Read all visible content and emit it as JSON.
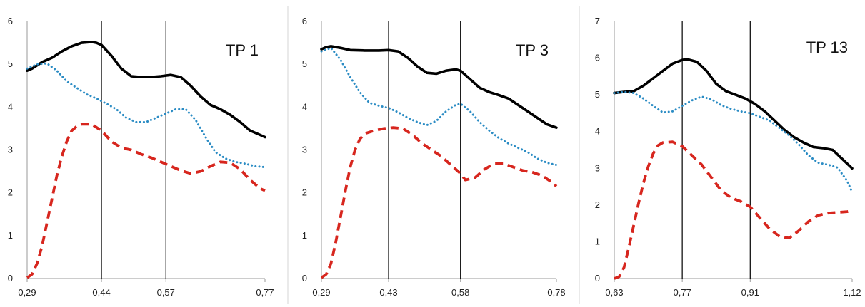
{
  "colors": {
    "solid": "#000000",
    "dotted": "#2b8cc4",
    "dashed": "#d7261e",
    "frame": "#9a9a9a",
    "vline": "#000000"
  },
  "chart_data": [
    {
      "type": "line",
      "title": "TP 1",
      "ylim": [
        0,
        6
      ],
      "yticks": [
        "0",
        "1",
        "2",
        "3",
        "4",
        "5",
        "6"
      ],
      "xlim": [
        0.29,
        0.77
      ],
      "xtick_values": [
        0.29,
        0.44,
        0.57,
        0.77
      ],
      "xtick_labels": [
        "0,29",
        "0,44",
        "0,57",
        "0,77"
      ],
      "vlines": [
        0.44,
        0.57
      ],
      "legend": "none",
      "series": [
        {
          "style": "solid",
          "points": [
            [
              0.29,
              4.85
            ],
            [
              0.3,
              4.9
            ],
            [
              0.32,
              5.05
            ],
            [
              0.34,
              5.15
            ],
            [
              0.36,
              5.3
            ],
            [
              0.38,
              5.42
            ],
            [
              0.4,
              5.5
            ],
            [
              0.42,
              5.52
            ],
            [
              0.43,
              5.5
            ],
            [
              0.44,
              5.45
            ],
            [
              0.46,
              5.2
            ],
            [
              0.48,
              4.9
            ],
            [
              0.5,
              4.72
            ],
            [
              0.52,
              4.7
            ],
            [
              0.54,
              4.7
            ],
            [
              0.56,
              4.72
            ],
            [
              0.58,
              4.75
            ],
            [
              0.6,
              4.7
            ],
            [
              0.62,
              4.5
            ],
            [
              0.64,
              4.25
            ],
            [
              0.66,
              4.05
            ],
            [
              0.68,
              3.95
            ],
            [
              0.7,
              3.82
            ],
            [
              0.72,
              3.65
            ],
            [
              0.74,
              3.45
            ],
            [
              0.76,
              3.35
            ],
            [
              0.77,
              3.3
            ]
          ]
        },
        {
          "style": "dotted",
          "points": [
            [
              0.29,
              4.9
            ],
            [
              0.31,
              5.0
            ],
            [
              0.33,
              5.02
            ],
            [
              0.35,
              4.85
            ],
            [
              0.37,
              4.6
            ],
            [
              0.39,
              4.45
            ],
            [
              0.41,
              4.3
            ],
            [
              0.43,
              4.2
            ],
            [
              0.45,
              4.08
            ],
            [
              0.47,
              3.95
            ],
            [
              0.49,
              3.75
            ],
            [
              0.51,
              3.65
            ],
            [
              0.53,
              3.65
            ],
            [
              0.55,
              3.75
            ],
            [
              0.57,
              3.85
            ],
            [
              0.59,
              3.95
            ],
            [
              0.61,
              3.95
            ],
            [
              0.63,
              3.7
            ],
            [
              0.65,
              3.3
            ],
            [
              0.67,
              2.95
            ],
            [
              0.69,
              2.8
            ],
            [
              0.71,
              2.72
            ],
            [
              0.73,
              2.68
            ],
            [
              0.75,
              2.62
            ],
            [
              0.77,
              2.6
            ]
          ]
        },
        {
          "style": "dashed",
          "points": [
            [
              0.29,
              0.02
            ],
            [
              0.3,
              0.1
            ],
            [
              0.31,
              0.35
            ],
            [
              0.32,
              0.75
            ],
            [
              0.33,
              1.3
            ],
            [
              0.34,
              1.85
            ],
            [
              0.35,
              2.4
            ],
            [
              0.36,
              2.85
            ],
            [
              0.37,
              3.2
            ],
            [
              0.38,
              3.45
            ],
            [
              0.39,
              3.55
            ],
            [
              0.4,
              3.6
            ],
            [
              0.42,
              3.6
            ],
            [
              0.44,
              3.45
            ],
            [
              0.46,
              3.2
            ],
            [
              0.48,
              3.05
            ],
            [
              0.5,
              3.0
            ],
            [
              0.52,
              2.9
            ],
            [
              0.54,
              2.82
            ],
            [
              0.56,
              2.72
            ],
            [
              0.58,
              2.62
            ],
            [
              0.6,
              2.52
            ],
            [
              0.62,
              2.45
            ],
            [
              0.64,
              2.5
            ],
            [
              0.66,
              2.62
            ],
            [
              0.68,
              2.72
            ],
            [
              0.7,
              2.7
            ],
            [
              0.72,
              2.55
            ],
            [
              0.74,
              2.3
            ],
            [
              0.76,
              2.1
            ],
            [
              0.77,
              2.05
            ]
          ]
        }
      ]
    },
    {
      "type": "line",
      "title": "TP 3",
      "ylim": [
        0,
        6
      ],
      "yticks": [
        "0",
        "1",
        "2",
        "3",
        "4",
        "5",
        "6"
      ],
      "xlim": [
        0.29,
        0.78
      ],
      "xtick_values": [
        0.29,
        0.43,
        0.58,
        0.78
      ],
      "xtick_labels": [
        "0,29",
        "0,43",
        "0,58",
        "0,78"
      ],
      "vlines": [
        0.43,
        0.58
      ],
      "legend": "none",
      "series": [
        {
          "style": "solid",
          "points": [
            [
              0.29,
              5.35
            ],
            [
              0.3,
              5.4
            ],
            [
              0.31,
              5.42
            ],
            [
              0.33,
              5.38
            ],
            [
              0.35,
              5.33
            ],
            [
              0.38,
              5.32
            ],
            [
              0.41,
              5.32
            ],
            [
              0.43,
              5.33
            ],
            [
              0.45,
              5.3
            ],
            [
              0.47,
              5.15
            ],
            [
              0.49,
              4.95
            ],
            [
              0.51,
              4.8
            ],
            [
              0.53,
              4.78
            ],
            [
              0.55,
              4.85
            ],
            [
              0.57,
              4.88
            ],
            [
              0.58,
              4.85
            ],
            [
              0.6,
              4.65
            ],
            [
              0.62,
              4.45
            ],
            [
              0.64,
              4.35
            ],
            [
              0.66,
              4.28
            ],
            [
              0.68,
              4.2
            ],
            [
              0.7,
              4.05
            ],
            [
              0.72,
              3.9
            ],
            [
              0.74,
              3.75
            ],
            [
              0.76,
              3.6
            ],
            [
              0.78,
              3.52
            ]
          ]
        },
        {
          "style": "dotted",
          "points": [
            [
              0.29,
              5.3
            ],
            [
              0.31,
              5.38
            ],
            [
              0.33,
              5.1
            ],
            [
              0.35,
              4.7
            ],
            [
              0.37,
              4.35
            ],
            [
              0.39,
              4.1
            ],
            [
              0.41,
              4.03
            ],
            [
              0.43,
              3.98
            ],
            [
              0.45,
              3.88
            ],
            [
              0.47,
              3.75
            ],
            [
              0.49,
              3.65
            ],
            [
              0.51,
              3.58
            ],
            [
              0.53,
              3.68
            ],
            [
              0.55,
              3.9
            ],
            [
              0.57,
              4.05
            ],
            [
              0.58,
              4.08
            ],
            [
              0.6,
              3.9
            ],
            [
              0.62,
              3.65
            ],
            [
              0.64,
              3.45
            ],
            [
              0.66,
              3.28
            ],
            [
              0.68,
              3.15
            ],
            [
              0.7,
              3.05
            ],
            [
              0.72,
              2.95
            ],
            [
              0.74,
              2.8
            ],
            [
              0.76,
              2.7
            ],
            [
              0.78,
              2.65
            ]
          ]
        },
        {
          "style": "dashed",
          "points": [
            [
              0.29,
              0.02
            ],
            [
              0.3,
              0.1
            ],
            [
              0.31,
              0.35
            ],
            [
              0.32,
              0.85
            ],
            [
              0.33,
              1.45
            ],
            [
              0.34,
              2.05
            ],
            [
              0.35,
              2.6
            ],
            [
              0.36,
              3.0
            ],
            [
              0.37,
              3.25
            ],
            [
              0.38,
              3.38
            ],
            [
              0.4,
              3.45
            ],
            [
              0.42,
              3.5
            ],
            [
              0.44,
              3.52
            ],
            [
              0.46,
              3.5
            ],
            [
              0.48,
              3.35
            ],
            [
              0.5,
              3.15
            ],
            [
              0.52,
              3.0
            ],
            [
              0.54,
              2.85
            ],
            [
              0.56,
              2.65
            ],
            [
              0.58,
              2.45
            ],
            [
              0.59,
              2.3
            ],
            [
              0.61,
              2.35
            ],
            [
              0.63,
              2.55
            ],
            [
              0.65,
              2.68
            ],
            [
              0.67,
              2.68
            ],
            [
              0.69,
              2.6
            ],
            [
              0.71,
              2.52
            ],
            [
              0.73,
              2.48
            ],
            [
              0.75,
              2.4
            ],
            [
              0.77,
              2.25
            ],
            [
              0.78,
              2.15
            ]
          ]
        }
      ]
    },
    {
      "type": "line",
      "title": "TP 13",
      "ylim": [
        0,
        7
      ],
      "yticks": [
        "0",
        "1",
        "2",
        "3",
        "4",
        "5",
        "6",
        "7"
      ],
      "xlim": [
        0.63,
        1.12
      ],
      "xtick_values": [
        0.63,
        0.77,
        0.91,
        1.12
      ],
      "xtick_labels": [
        "0,63",
        "0,77",
        "0,91",
        "1,12"
      ],
      "vlines": [
        0.77,
        0.91
      ],
      "legend": "none",
      "series": [
        {
          "style": "solid",
          "points": [
            [
              0.63,
              5.05
            ],
            [
              0.65,
              5.08
            ],
            [
              0.67,
              5.1
            ],
            [
              0.69,
              5.25
            ],
            [
              0.71,
              5.45
            ],
            [
              0.73,
              5.65
            ],
            [
              0.75,
              5.85
            ],
            [
              0.77,
              5.95
            ],
            [
              0.78,
              5.97
            ],
            [
              0.8,
              5.9
            ],
            [
              0.82,
              5.65
            ],
            [
              0.84,
              5.3
            ],
            [
              0.86,
              5.1
            ],
            [
              0.88,
              5.0
            ],
            [
              0.9,
              4.9
            ],
            [
              0.92,
              4.75
            ],
            [
              0.94,
              4.55
            ],
            [
              0.96,
              4.3
            ],
            [
              0.98,
              4.05
            ],
            [
              1.0,
              3.85
            ],
            [
              1.02,
              3.7
            ],
            [
              1.04,
              3.58
            ],
            [
              1.06,
              3.55
            ],
            [
              1.08,
              3.5
            ],
            [
              1.1,
              3.25
            ],
            [
              1.12,
              3.0
            ]
          ]
        },
        {
          "style": "dotted",
          "points": [
            [
              0.63,
              5.05
            ],
            [
              0.65,
              5.08
            ],
            [
              0.67,
              5.05
            ],
            [
              0.69,
              4.9
            ],
            [
              0.71,
              4.7
            ],
            [
              0.73,
              4.52
            ],
            [
              0.75,
              4.55
            ],
            [
              0.77,
              4.7
            ],
            [
              0.79,
              4.85
            ],
            [
              0.81,
              4.95
            ],
            [
              0.83,
              4.88
            ],
            [
              0.85,
              4.72
            ],
            [
              0.87,
              4.62
            ],
            [
              0.89,
              4.55
            ],
            [
              0.91,
              4.5
            ],
            [
              0.93,
              4.4
            ],
            [
              0.95,
              4.3
            ],
            [
              0.97,
              4.1
            ],
            [
              0.99,
              3.9
            ],
            [
              1.01,
              3.65
            ],
            [
              1.03,
              3.35
            ],
            [
              1.05,
              3.15
            ],
            [
              1.07,
              3.1
            ],
            [
              1.09,
              3.02
            ],
            [
              1.11,
              2.65
            ],
            [
              1.12,
              2.35
            ]
          ]
        },
        {
          "style": "dashed",
          "points": [
            [
              0.63,
              0.0
            ],
            [
              0.64,
              0.05
            ],
            [
              0.65,
              0.3
            ],
            [
              0.66,
              0.85
            ],
            [
              0.67,
              1.45
            ],
            [
              0.68,
              2.05
            ],
            [
              0.69,
              2.6
            ],
            [
              0.7,
              3.05
            ],
            [
              0.71,
              3.4
            ],
            [
              0.72,
              3.62
            ],
            [
              0.73,
              3.7
            ],
            [
              0.75,
              3.72
            ],
            [
              0.77,
              3.6
            ],
            [
              0.79,
              3.35
            ],
            [
              0.81,
              3.1
            ],
            [
              0.83,
              2.75
            ],
            [
              0.85,
              2.4
            ],
            [
              0.87,
              2.2
            ],
            [
              0.89,
              2.1
            ],
            [
              0.91,
              1.95
            ],
            [
              0.93,
              1.65
            ],
            [
              0.95,
              1.35
            ],
            [
              0.97,
              1.15
            ],
            [
              0.99,
              1.1
            ],
            [
              1.01,
              1.3
            ],
            [
              1.03,
              1.55
            ],
            [
              1.05,
              1.72
            ],
            [
              1.07,
              1.78
            ],
            [
              1.09,
              1.8
            ],
            [
              1.11,
              1.82
            ],
            [
              1.12,
              1.85
            ]
          ]
        }
      ]
    }
  ]
}
